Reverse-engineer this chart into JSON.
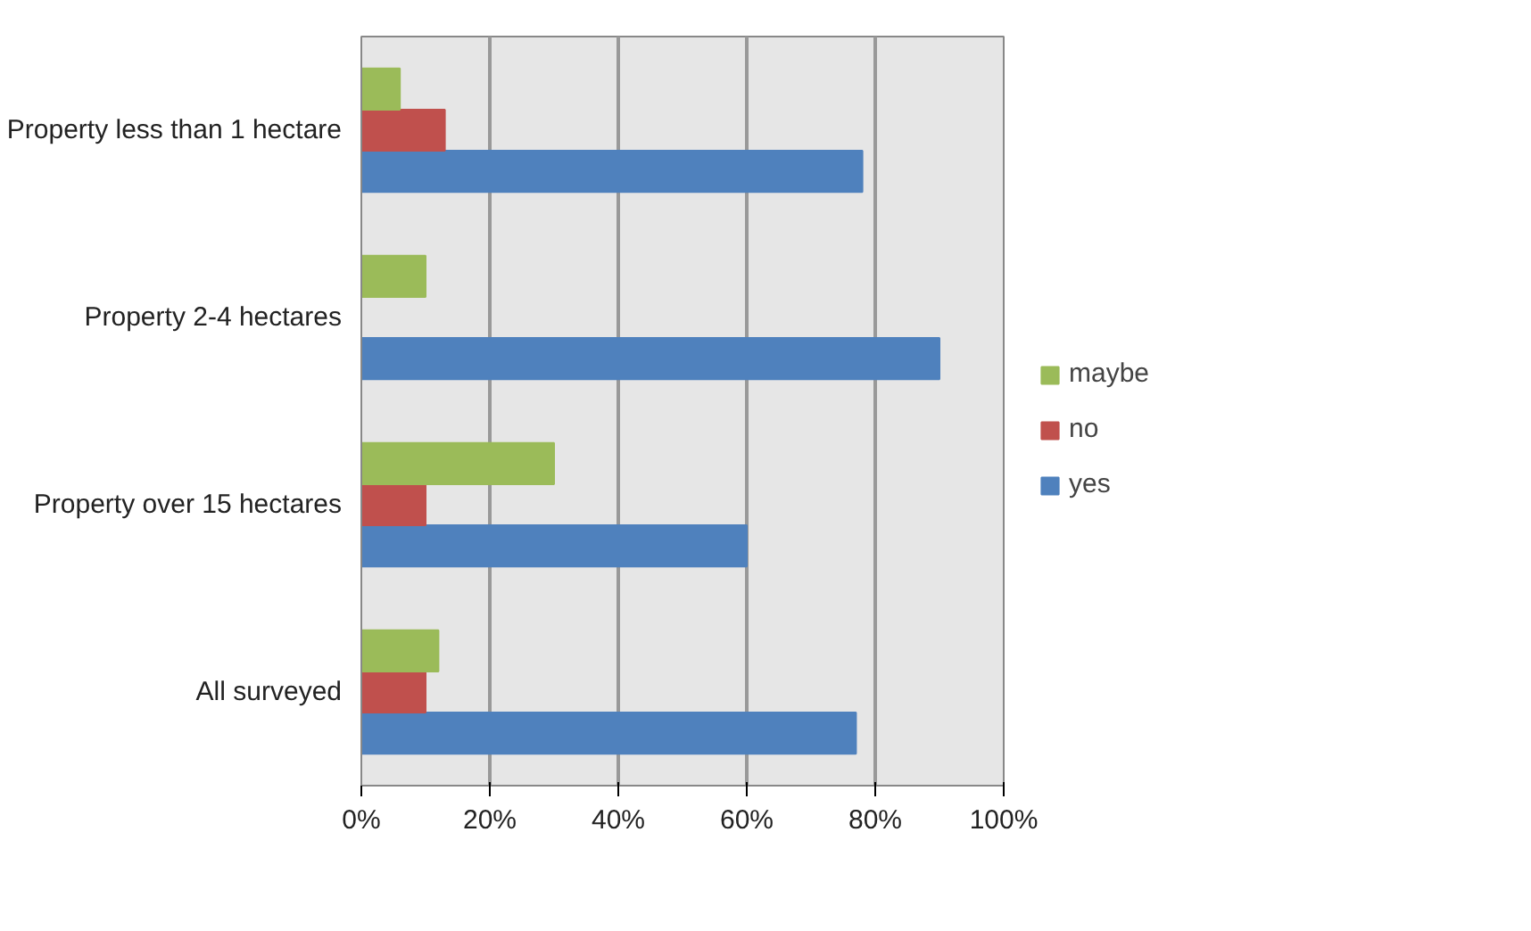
{
  "chart_data": {
    "type": "bar",
    "orientation": "horizontal",
    "categories": [
      "Property less than 1 hectare",
      "Property 2-4 hectares",
      "Property over 15 hectares",
      "All surveyed"
    ],
    "series": [
      {
        "name": "yes",
        "color": "#4f81bd",
        "values": [
          78,
          90,
          60,
          77
        ]
      },
      {
        "name": "no",
        "color": "#c0504d",
        "values": [
          13,
          0,
          10,
          10
        ]
      },
      {
        "name": "maybe",
        "color": "#9bbb59",
        "values": [
          6,
          10,
          30,
          12
        ]
      }
    ],
    "xlim": [
      0,
      100
    ],
    "xticks": [
      {
        "value": 0,
        "label": "0%"
      },
      {
        "value": 20,
        "label": "20%"
      },
      {
        "value": 40,
        "label": "40%"
      },
      {
        "value": 60,
        "label": "60%"
      },
      {
        "value": 80,
        "label": "80%"
      },
      {
        "value": 100,
        "label": "100%"
      }
    ],
    "grid": "x",
    "legend": "right"
  }
}
